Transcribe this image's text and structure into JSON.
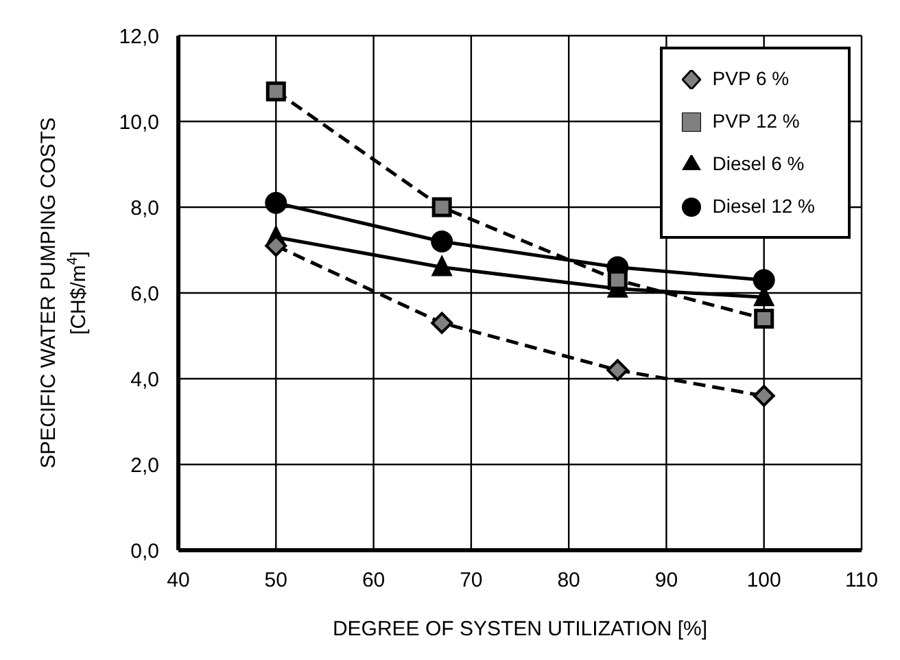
{
  "chart_data": {
    "type": "line",
    "xlabel": "DEGREE OF SYSTEN UTILIZATION [%]",
    "ylabel": "SPECIFIC WATER PUMPING COSTS\n[CH$/m$^{4}$]",
    "x": [
      50,
      67,
      85,
      100
    ],
    "series": [
      {
        "name": "PVP 6 %",
        "color": "#000000",
        "marker": "diamond",
        "line_style": "dashed",
        "values": [
          7.1,
          5.3,
          4.2,
          3.6
        ]
      },
      {
        "name": "PVP 12 %",
        "color": "#000000",
        "marker": "square",
        "line_style": "dashed",
        "values": [
          10.7,
          8.0,
          6.3,
          5.4
        ]
      },
      {
        "name": "Diesel 6 %",
        "color": "#000000",
        "marker": "triangle",
        "line_style": "solid",
        "values": [
          7.3,
          6.6,
          6.1,
          5.9
        ]
      },
      {
        "name": "Diesel 12 %",
        "color": "#000000",
        "marker": "circle",
        "line_style": "solid",
        "values": [
          8.1,
          7.2,
          6.6,
          6.3
        ]
      }
    ],
    "xlim": [
      40,
      110
    ],
    "xticks": [
      40,
      50,
      60,
      70,
      80,
      90,
      100,
      110
    ],
    "ylim": [
      0,
      12
    ],
    "yticks": [
      {
        "value": 0,
        "label": "0,0"
      },
      {
        "value": 2,
        "label": "2,0"
      },
      {
        "value": 4,
        "label": "4,0"
      },
      {
        "value": 6,
        "label": "6,0"
      },
      {
        "value": 8,
        "label": "8,0"
      },
      {
        "value": 10,
        "label": "10,0"
      },
      {
        "value": 12,
        "label": "12,0"
      }
    ],
    "grid": true,
    "legend": "top right"
  }
}
